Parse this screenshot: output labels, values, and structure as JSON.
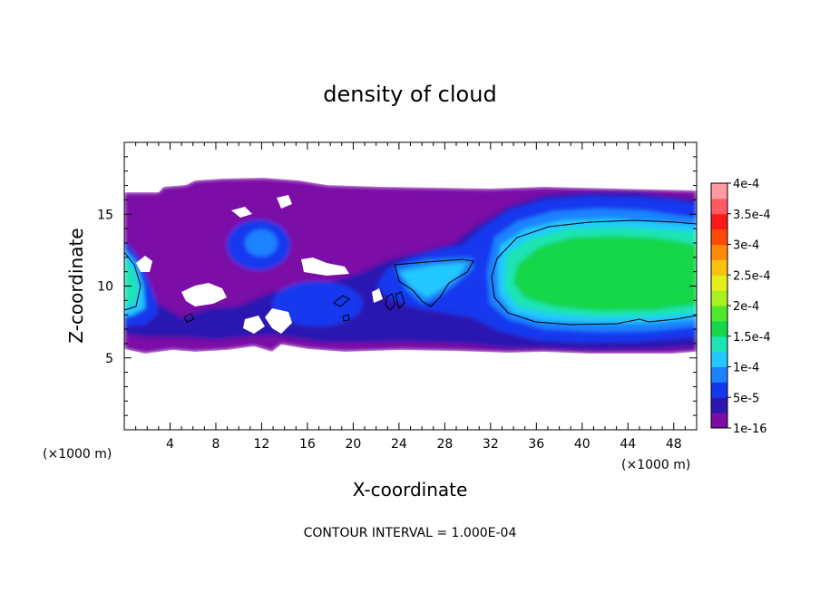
{
  "chart_data": {
    "type": "heatmap",
    "title": "density of cloud",
    "xlabel": "X-coordinate",
    "ylabel": "Z-coordinate",
    "x_unit": "(×1000 m)",
    "y_unit": "(×1000 m)",
    "xlim": [
      0,
      50
    ],
    "ylim": [
      0,
      20
    ],
    "xticks": [
      4,
      8,
      12,
      16,
      20,
      24,
      28,
      32,
      36,
      40,
      44,
      48
    ],
    "yticks": [
      5,
      10,
      15
    ],
    "grid": false,
    "colorbar": {
      "placement": "right",
      "tick_labels": [
        "1e-16",
        "5e-5",
        "1e-4",
        "1.5e-4",
        "2e-4",
        "2.5e-4",
        "3e-4",
        "3.5e-4",
        "4e-4"
      ],
      "levels": [
        0,
        5e-05,
        0.0001,
        0.00015,
        0.0002,
        0.00025,
        0.0003,
        0.00035,
        0.0004
      ],
      "colors": [
        "#7b0da6",
        "#2b17b0",
        "#1238ee",
        "#1c82ff",
        "#23c8ff",
        "#1de4b4",
        "#16d64a",
        "#4fe82a",
        "#a8f020",
        "#e3ee1a",
        "#f9c210",
        "#ff8a0a",
        "#ff4a0a",
        "#ff1a1a",
        "#ff5a60",
        "#ff9aa0"
      ]
    },
    "contour_interval": "CONTOUR INTERVAL = 1.000E-04",
    "regions": [
      {
        "level": 1e-05,
        "x": [
          0,
          50
        ],
        "z": [
          5.5,
          16.5
        ]
      },
      {
        "level": 0.0002,
        "x": [
          33,
          50
        ],
        "z": [
          7.3,
          14.5
        ]
      },
      {
        "level": 0.00012,
        "x": [
          0,
          1.5
        ],
        "z": [
          8,
          13
        ]
      },
      {
        "level": 0.0001,
        "x": [
          19,
          30
        ],
        "z": [
          8.5,
          12
        ]
      }
    ]
  }
}
